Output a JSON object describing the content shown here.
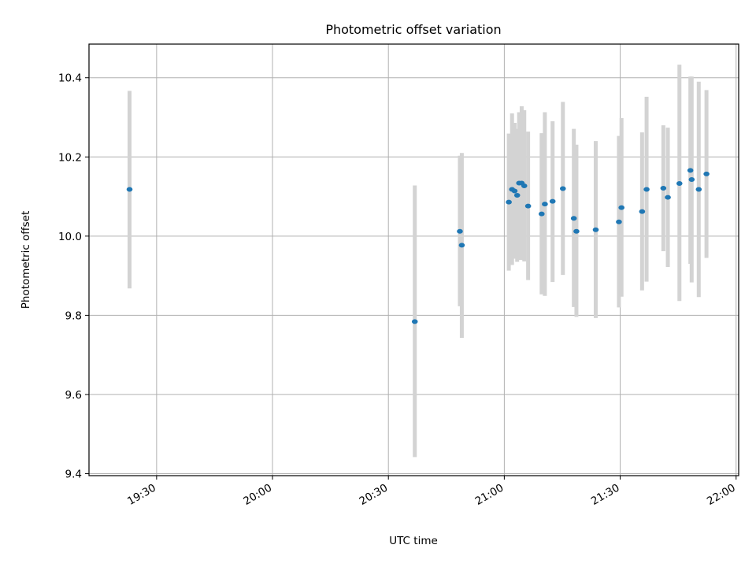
{
  "chart_data": {
    "type": "scatter",
    "title": "Photometric offset variation",
    "xlabel": "UTC time",
    "ylabel": "Photometric offset",
    "x_unit": "HH:MM UTC",
    "xlim": [
      "19:12:30",
      "22:00:40"
    ],
    "ylim": [
      9.395,
      10.485
    ],
    "x_ticks": [
      "19:30",
      "20:00",
      "20:30",
      "21:00",
      "21:30",
      "22:00"
    ],
    "y_ticks": [
      9.4,
      9.6,
      9.8,
      10.0,
      10.2,
      10.4
    ],
    "y_tick_labels": [
      "9.4",
      "9.6",
      "9.8",
      "10.0",
      "10.2",
      "10.4"
    ],
    "grid": true,
    "errorbar_color": "#d3d3d3",
    "marker_color": "#1f77b4",
    "points": [
      {
        "t": "19:23:00",
        "y": 10.118,
        "lo": 9.868,
        "hi": 10.367
      },
      {
        "t": "20:36:50",
        "y": 9.784,
        "lo": 9.442,
        "hi": 10.128
      },
      {
        "t": "20:48:30",
        "y": 10.012,
        "lo": 9.823,
        "hi": 10.203
      },
      {
        "t": "20:49:00",
        "y": 9.977,
        "lo": 9.743,
        "hi": 10.21
      },
      {
        "t": "21:01:10",
        "y": 10.086,
        "lo": 9.913,
        "hi": 10.259
      },
      {
        "t": "21:02:00",
        "y": 10.118,
        "lo": 9.927,
        "hi": 10.31
      },
      {
        "t": "21:02:40",
        "y": 10.114,
        "lo": 9.943,
        "hi": 10.286
      },
      {
        "t": "21:03:20",
        "y": 10.103,
        "lo": 9.935,
        "hi": 10.271
      },
      {
        "t": "21:03:50",
        "y": 10.134,
        "lo": 9.94,
        "hi": 10.313
      },
      {
        "t": "21:04:30",
        "y": 10.134,
        "lo": 9.94,
        "hi": 10.328
      },
      {
        "t": "21:05:10",
        "y": 10.127,
        "lo": 9.936,
        "hi": 10.318
      },
      {
        "t": "21:06:10",
        "y": 10.076,
        "lo": 9.889,
        "hi": 10.264
      },
      {
        "t": "21:09:40",
        "y": 10.056,
        "lo": 9.853,
        "hi": 10.26
      },
      {
        "t": "21:10:30",
        "y": 10.081,
        "lo": 9.849,
        "hi": 10.313
      },
      {
        "t": "21:12:30",
        "y": 10.088,
        "lo": 9.884,
        "hi": 10.29
      },
      {
        "t": "21:15:10",
        "y": 10.12,
        "lo": 9.902,
        "hi": 10.339
      },
      {
        "t": "21:18:00",
        "y": 10.045,
        "lo": 9.821,
        "hi": 10.271
      },
      {
        "t": "21:18:40",
        "y": 10.012,
        "lo": 9.796,
        "hi": 10.231
      },
      {
        "t": "21:23:40",
        "y": 10.016,
        "lo": 9.793,
        "hi": 10.24
      },
      {
        "t": "21:29:40",
        "y": 10.036,
        "lo": 9.82,
        "hi": 10.253
      },
      {
        "t": "21:30:20",
        "y": 10.072,
        "lo": 9.847,
        "hi": 10.298
      },
      {
        "t": "21:35:40",
        "y": 10.062,
        "lo": 9.863,
        "hi": 10.262
      },
      {
        "t": "21:36:50",
        "y": 10.118,
        "lo": 9.885,
        "hi": 10.352
      },
      {
        "t": "21:41:10",
        "y": 10.121,
        "lo": 9.962,
        "hi": 10.28
      },
      {
        "t": "21:42:20",
        "y": 10.098,
        "lo": 9.922,
        "hi": 10.274
      },
      {
        "t": "21:45:20",
        "y": 10.133,
        "lo": 9.836,
        "hi": 10.433
      },
      {
        "t": "21:48:10",
        "y": 10.166,
        "lo": 9.93,
        "hi": 10.403
      },
      {
        "t": "21:48:30",
        "y": 10.143,
        "lo": 9.883,
        "hi": 10.403
      },
      {
        "t": "21:50:20",
        "y": 10.118,
        "lo": 9.846,
        "hi": 10.39
      },
      {
        "t": "21:52:20",
        "y": 10.157,
        "lo": 9.945,
        "hi": 10.369
      }
    ]
  }
}
